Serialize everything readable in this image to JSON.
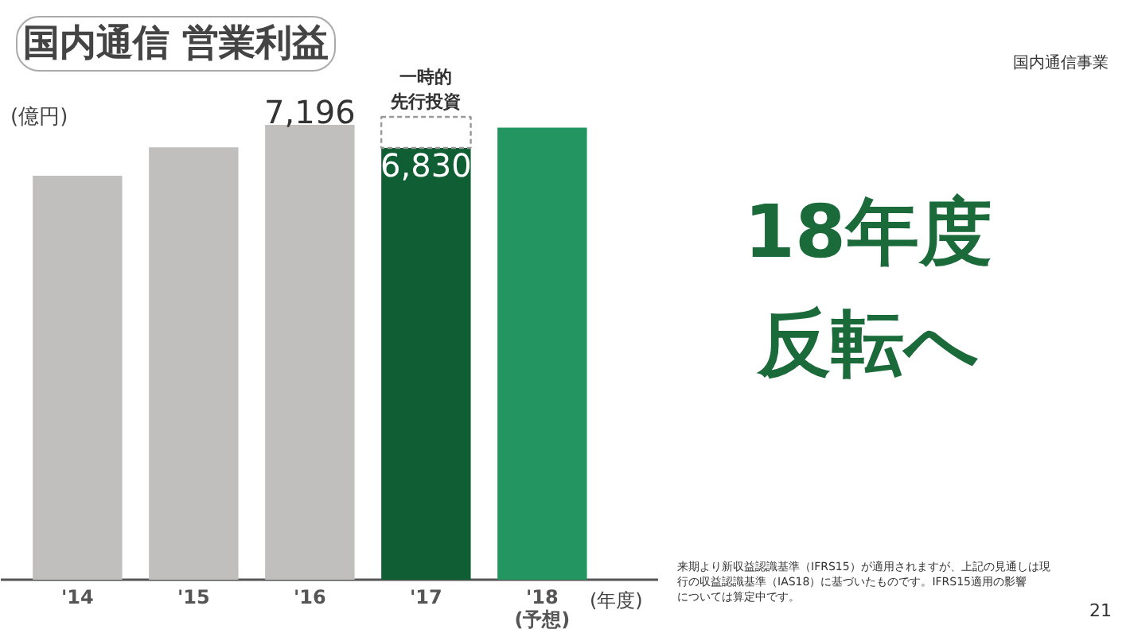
{
  "chart_data": {
    "type": "bar",
    "title": "国内通信 営業利益",
    "ylabel": "(億円)",
    "xlabel": "(年度)",
    "categories": [
      "'14",
      "'15",
      "'16",
      "'17",
      "'18\n(予想)"
    ],
    "stacked": true,
    "legend": false,
    "series": [
      {
        "colors": [
          "#c0bfbd",
          "#c0bfbd",
          "#c0bfbd",
          "#105e34",
          "#229560"
        ],
        "values": [
          6390,
          6840,
          7196,
          6830,
          7150
        ],
        "value_labels": [
          null,
          null,
          "7,196",
          "6,830",
          null
        ]
      },
      {
        "name": "一時的先行投資",
        "color": "#999999",
        "line_style": "dashed",
        "values": [
          null,
          null,
          null,
          490,
          null
        ]
      }
    ],
    "annotations": [
      "18年度反転へ",
      "国内通信事業",
      "来期より新収益認識基準（IFRS15）が適用されますが、上記の見通しは現行の収益認識基準（IAS18）に基づいたものです。IFRS15適用の影響については算定中です。",
      "21"
    ]
  }
}
